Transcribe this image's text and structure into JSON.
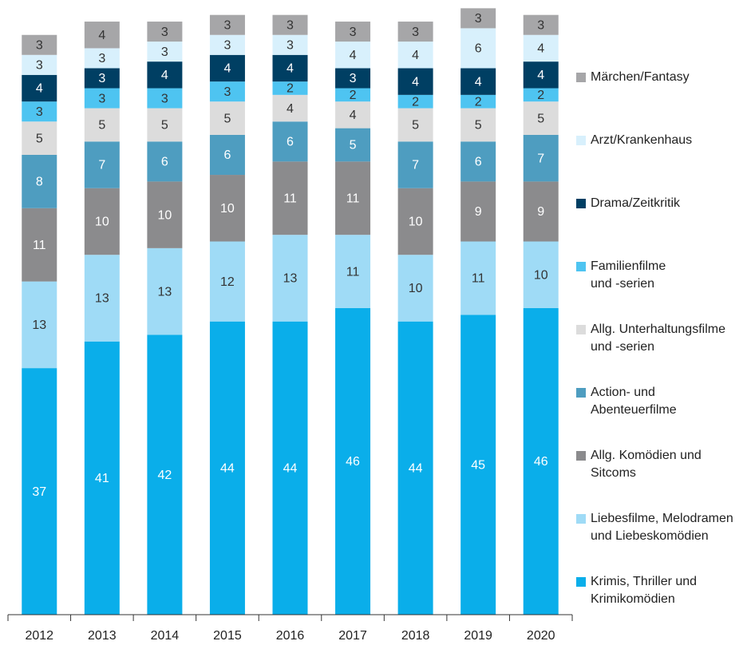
{
  "chart_data": {
    "type": "stacked_bar",
    "categories": [
      "2012",
      "2013",
      "2014",
      "2015",
      "2016",
      "2017",
      "2018",
      "2019",
      "2020"
    ],
    "ylim": [
      0,
      92
    ],
    "series": [
      {
        "name": "Krimis, Thriller und\nKrimikomödien",
        "color": "#0aaeea",
        "values": [
          37,
          41,
          42,
          44,
          44,
          46,
          44,
          45,
          46
        ]
      },
      {
        "name": "Liebesfilme, Melodramen\nund Liebeskomödien",
        "color": "#9fdbf6",
        "values": [
          13,
          13,
          13,
          12,
          13,
          11,
          10,
          11,
          10
        ]
      },
      {
        "name": "Allg. Komödien und\nSitcoms",
        "color": "#8b8b8d",
        "values": [
          11,
          10,
          10,
          10,
          11,
          11,
          10,
          9,
          9
        ]
      },
      {
        "name": "Action- und\nAbenteuerfilme",
        "color": "#4e9dc0",
        "values": [
          8,
          7,
          6,
          6,
          6,
          5,
          7,
          6,
          7
        ]
      },
      {
        "name": "Allg. Unterhaltungsfilme\nund -serien",
        "color": "#dcdcdc",
        "values": [
          5,
          5,
          5,
          5,
          4,
          4,
          5,
          5,
          5
        ]
      },
      {
        "name": "Familienfilme\nund -serien",
        "color": "#4ec4f1",
        "values": [
          3,
          3,
          3,
          3,
          2,
          2,
          2,
          2,
          2
        ]
      },
      {
        "name": "Drama/Zeitkritik",
        "color": "#003f63",
        "values": [
          4,
          3,
          4,
          4,
          4,
          3,
          4,
          4,
          4
        ]
      },
      {
        "name": "Arzt/Krankenhaus",
        "color": "#d8f0fc",
        "values": [
          3,
          3,
          3,
          3,
          3,
          4,
          4,
          6,
          4
        ]
      },
      {
        "name": "Märchen/Fantasy",
        "color": "#a6a6a8",
        "values": [
          3,
          4,
          3,
          3,
          3,
          3,
          3,
          3,
          3
        ]
      }
    ]
  }
}
